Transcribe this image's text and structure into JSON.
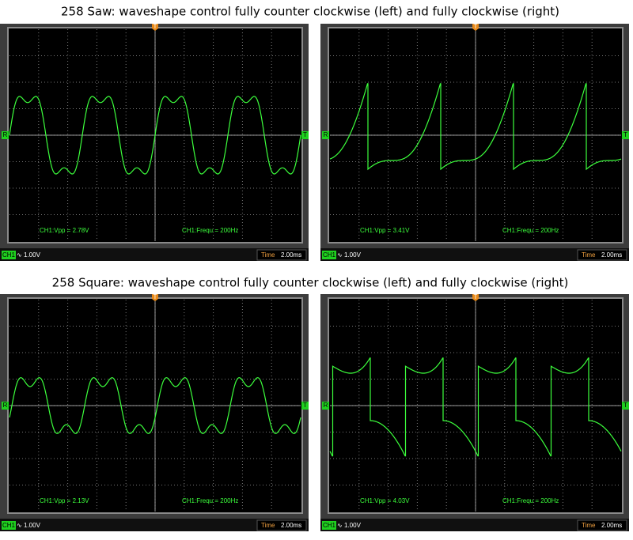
{
  "captions": [
    "258 Saw: waveshape control fully counter clockwise (left) and fully clockwise (right)",
    "258 Square: waveshape control fully counter clockwise (left) and fully clockwise (right)"
  ],
  "panels": [
    {
      "vpp": "CH1:Vpp = 2.78V",
      "freq": "CH1:Frequ = 200Hz",
      "channel": "CH1",
      "coupling": "∿",
      "volts": "1.00V",
      "time_label": "Time",
      "time": "2.00ms",
      "trigger": "T",
      "ref": "R"
    },
    {
      "vpp": "CH1:Vpp = 3.41V",
      "freq": "CH1:Frequ = 200Hz",
      "channel": "CH1",
      "coupling": "∿",
      "volts": "1.00V",
      "time_label": "Time",
      "time": "2.00ms",
      "trigger": "T",
      "ref": "R"
    },
    {
      "vpp": "CH1:Vpp = 2.13V",
      "freq": "CH1:Frequ = 200Hz",
      "channel": "CH1",
      "coupling": "∿",
      "volts": "1.00V",
      "time_label": "Time",
      "time": "2.00ms",
      "trigger": "T",
      "ref": "R"
    },
    {
      "vpp": "CH1:Vpp = 4.03V",
      "freq": "CH1:Frequ = 200Hz",
      "channel": "CH1",
      "coupling": "∿",
      "volts": "1.00V",
      "time_label": "Time",
      "time": "2.00ms",
      "trigger": "T",
      "ref": "R"
    }
  ]
}
